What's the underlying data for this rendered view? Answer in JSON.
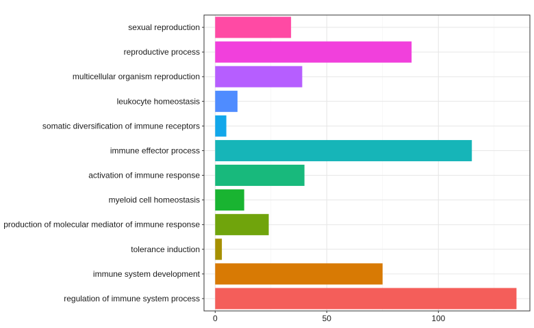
{
  "chart_data": {
    "type": "bar",
    "orientation": "horizontal",
    "title": "",
    "xlabel": "",
    "ylabel": "",
    "xlim": [
      -5,
      141
    ],
    "xticks": [
      0,
      50,
      100
    ],
    "grid": true,
    "legend": "none",
    "categories": [
      "sexual reproduction",
      "reproductive process",
      "multicellular organism reproduction",
      "leukocyte homeostasis",
      "somatic diversification of immune receptors",
      "immune effector process",
      "activation of immune response",
      "myeloid cell homeostasis",
      "production of molecular mediator of immune response",
      "tolerance induction",
      "immune system development",
      "regulation of immune system process"
    ],
    "values": [
      34,
      88,
      39,
      10,
      5,
      115,
      40,
      13,
      24,
      3,
      75,
      135
    ],
    "colors": [
      "#FF4AA4",
      "#F140DC",
      "#B65EFF",
      "#4F8CFF",
      "#12A7EA",
      "#16B5B8",
      "#18B97C",
      "#19B431",
      "#70A40C",
      "#A69000",
      "#D87A04",
      "#F45E5A"
    ]
  }
}
